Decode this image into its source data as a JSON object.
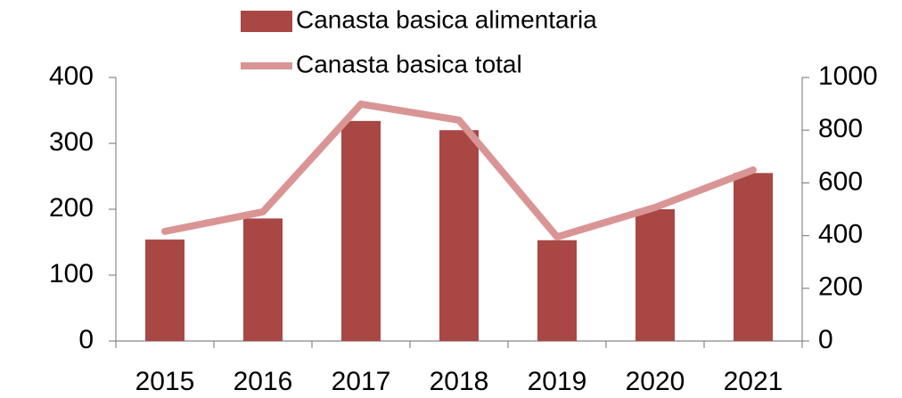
{
  "chart_data": {
    "type": "bar_line",
    "categories": [
      "2015",
      "2016",
      "2017",
      "2018",
      "2019",
      "2020",
      "2021"
    ],
    "series": [
      {
        "name": "Canasta basica alimentaria",
        "type": "bar",
        "color": "#a94745",
        "values": [
          154,
          186,
          334,
          320,
          153,
          200,
          255
        ]
      },
      {
        "name": "Canasta basica total",
        "type": "line",
        "axis": "y2",
        "color": "#d99594",
        "values": [
          416,
          490,
          899,
          838,
          395,
          507,
          649
        ]
      }
    ],
    "ylim": [
      0,
      400
    ],
    "yticks": [
      0,
      100,
      200,
      300,
      400
    ],
    "y2lim": [
      0,
      1000
    ],
    "y2ticks": [
      0,
      200,
      400,
      600,
      800,
      1000
    ],
    "grid": false,
    "legend": "top"
  }
}
